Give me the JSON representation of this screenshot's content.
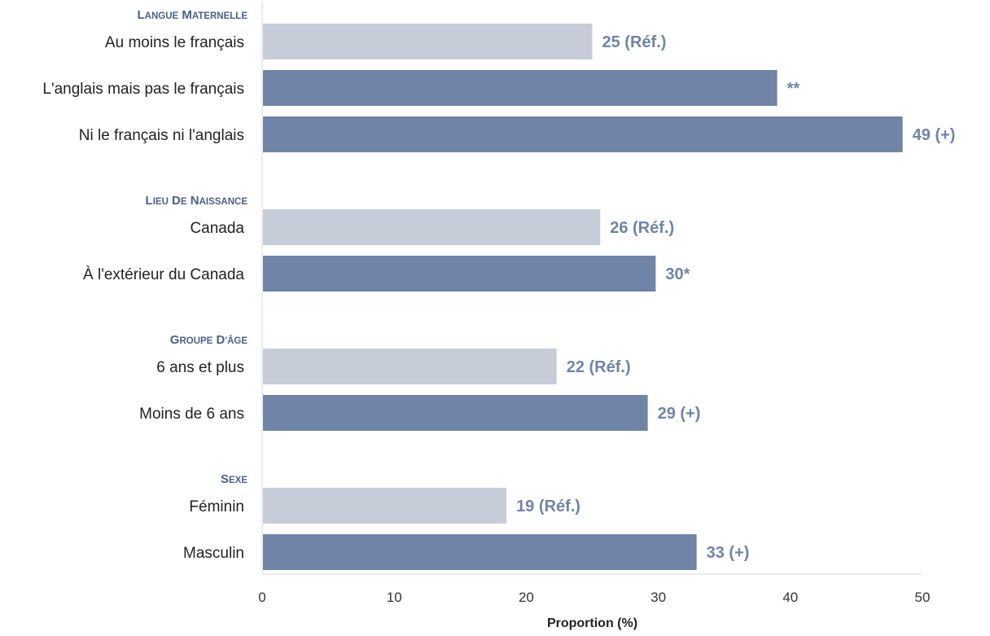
{
  "chart_data": {
    "type": "bar",
    "orientation": "horizontal",
    "xlabel": "Proportion (%)",
    "xlim": [
      0,
      50
    ],
    "xticks": [
      "0",
      "10",
      "20",
      "30",
      "40",
      "50"
    ],
    "grid": false,
    "colors": {
      "reference": "#c7ccd9",
      "comparison": "#6f84a6",
      "header": "#4a6185",
      "label_text": "#6f84a6"
    },
    "groups": [
      {
        "header": "Langue maternelle",
        "rows": [
          {
            "category": "Au moins le français",
            "value": 25,
            "label": "25 (Réf.)",
            "reference": true
          },
          {
            "category": "L'anglais mais pas le français",
            "value": 39,
            "label": "**",
            "reference": false
          },
          {
            "category": "Ni le français ni l'anglais",
            "value": 48.5,
            "label": "49 (+)",
            "reference": false
          }
        ]
      },
      {
        "header": "Lieu de naissance",
        "rows": [
          {
            "category": "Canada",
            "value": 25.6,
            "label": "26 (Réf.)",
            "reference": true
          },
          {
            "category": "À l'extérieur du Canada",
            "value": 29.8,
            "label": "30*",
            "reference": false
          }
        ]
      },
      {
        "header": "Groupe d'âge",
        "rows": [
          {
            "category": "6 ans et plus",
            "value": 22.3,
            "label": "22 (Réf.)",
            "reference": true
          },
          {
            "category": "Moins de 6 ans",
            "value": 29.2,
            "label": "29 (+)",
            "reference": false
          }
        ]
      },
      {
        "header": "Sexe",
        "rows": [
          {
            "category": "Féminin",
            "value": 18.5,
            "label": "19 (Réf.)",
            "reference": true
          },
          {
            "category": "Masculin",
            "value": 32.9,
            "label": "33 (+)",
            "reference": false
          }
        ]
      }
    ]
  }
}
